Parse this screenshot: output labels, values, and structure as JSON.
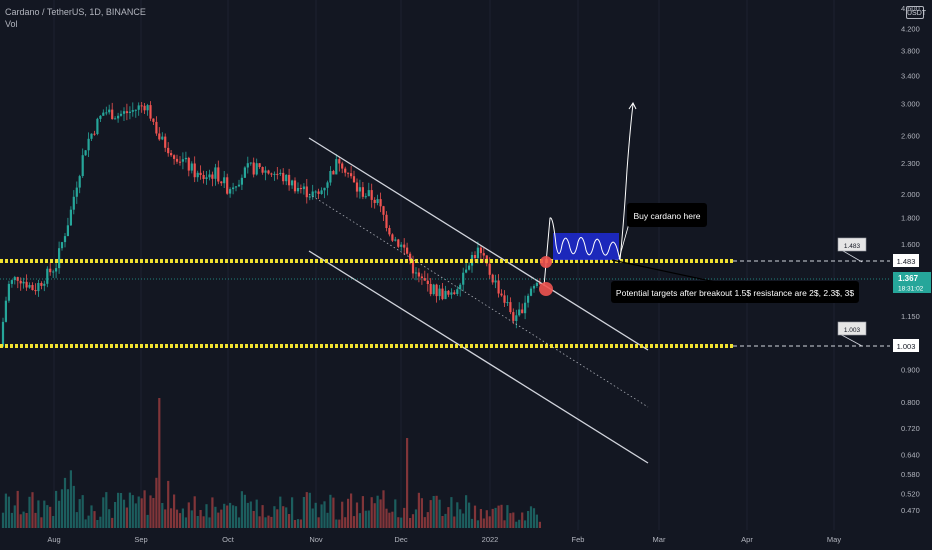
{
  "header": {
    "symbol_line": "Cardano / TetherUS, 1D, BINANCE",
    "volume_label": "Vol"
  },
  "currency_tag": "USDT",
  "price_axis": {
    "ticks": [
      {
        "label": "4.600",
        "value": 4.6
      },
      {
        "label": "4.200",
        "value": 4.2
      },
      {
        "label": "3.800",
        "value": 3.8
      },
      {
        "label": "3.400",
        "value": 3.4
      },
      {
        "label": "3.000",
        "value": 3.0
      },
      {
        "label": "2.600",
        "value": 2.6
      },
      {
        "label": "2.300",
        "value": 2.3
      },
      {
        "label": "2.000",
        "value": 2.0
      },
      {
        "label": "1.800",
        "value": 1.8
      },
      {
        "label": "1.600",
        "value": 1.6
      },
      {
        "label": "1.150",
        "value": 1.15
      },
      {
        "label": "0.900",
        "value": 0.9
      },
      {
        "label": "0.800",
        "value": 0.8
      },
      {
        "label": "0.720",
        "value": 0.72
      },
      {
        "label": "0.640",
        "value": 0.64
      },
      {
        "label": "0.580",
        "value": 0.58
      },
      {
        "label": "0.520",
        "value": 0.52
      },
      {
        "label": "0.470",
        "value": 0.47
      }
    ]
  },
  "time_axis": {
    "labels": [
      "Aug",
      "Sep",
      "Oct",
      "Nov",
      "Dec",
      "2022",
      "Feb",
      "Mar",
      "Apr",
      "May"
    ]
  },
  "levels": {
    "resistance": {
      "label": "1.483",
      "value": 1.483
    },
    "support": {
      "label": "1.003",
      "value": 1.003
    }
  },
  "current_price": {
    "label": "1.367",
    "countdown": "18:31:02",
    "value": 1.367
  },
  "annotations": {
    "buy_note": "Buy cardano here",
    "targets_note": "Potential targets after breakout 1.5$ resistance are 2$, 2.3$, 3$"
  },
  "colors": {
    "background": "#131722",
    "up": "#26a69a",
    "down": "#ef5350",
    "level_line": "#f0e130",
    "channel": "#d1d4dc",
    "box": "#1e2bd6",
    "current_tag": "#26a69a"
  },
  "chart_data": {
    "type": "candlestick",
    "title": "Cardano / TetherUS, 1D, BINANCE",
    "ylim": [
      0.45,
      4.6
    ],
    "y_scale": "log",
    "key_points": [
      {
        "x": "2021-07-20",
        "y": 1.0
      },
      {
        "x": "2021-08-01",
        "y": 1.4
      },
      {
        "x": "2021-08-23",
        "y": 2.9
      },
      {
        "x": "2021-09-02",
        "y": 3.1
      },
      {
        "x": "2021-10-01",
        "y": 2.2
      },
      {
        "x": "2021-11-01",
        "y": 1.95
      },
      {
        "x": "2021-11-09",
        "y": 2.35
      },
      {
        "x": "2021-12-04",
        "y": 1.25
      },
      {
        "x": "2021-12-27",
        "y": 1.52
      },
      {
        "x": "2022-01-10",
        "y": 1.12
      },
      {
        "x": "2022-01-16",
        "y": 1.367
      }
    ],
    "horizontal_levels": [
      1.483,
      1.003
    ],
    "projection_targets": [
      2.0,
      2.3,
      3.0
    ]
  }
}
